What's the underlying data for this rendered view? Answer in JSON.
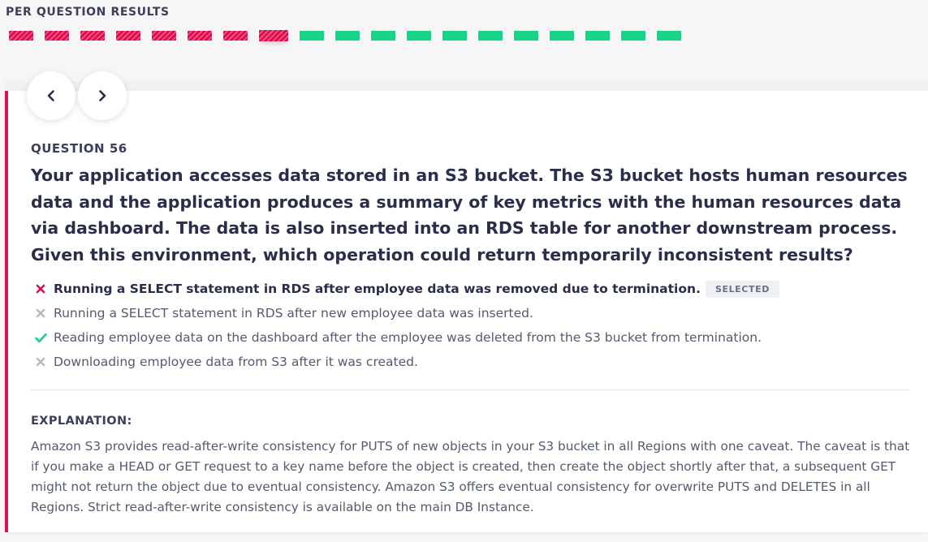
{
  "header": {
    "title": "PER QUESTION RESULTS"
  },
  "progress": {
    "segments": [
      "wrong",
      "wrong",
      "wrong",
      "wrong",
      "wrong",
      "wrong",
      "wrong",
      "wrong",
      "correct",
      "correct",
      "correct",
      "correct",
      "correct",
      "correct",
      "correct",
      "correct",
      "correct",
      "correct",
      "correct"
    ],
    "current_index": 7
  },
  "nav": {
    "prev_icon": "chevron-left-icon",
    "next_icon": "chevron-right-icon"
  },
  "question": {
    "label": "QUESTION 56",
    "text": "Your application accesses data stored in an S3 bucket. The S3 bucket hosts human resources data and the application produces a summary of key metrics with the human resources data via dashboard. The data is also inserted into an RDS table for another downstream process. Given this environment, which operation could return temporarily inconsistent results?"
  },
  "answers": [
    {
      "text": "Running a SELECT statement in RDS after employee data was removed due to termination.",
      "status": "wrong",
      "selected": true,
      "badge": "SELECTED"
    },
    {
      "text": "Running a SELECT statement in RDS after new employee data was inserted.",
      "status": "neutral",
      "selected": false
    },
    {
      "text": "Reading employee data on the dashboard after the employee was deleted from the S3 bucket from termination.",
      "status": "correct",
      "selected": false
    },
    {
      "text": "Downloading employee data from S3 after it was created.",
      "status": "neutral",
      "selected": false
    }
  ],
  "explanation": {
    "label": "EXPLANATION:",
    "text": "Amazon S3 provides read-after-write consistency for PUTS of new objects in your S3 bucket in all Regions with one caveat. The caveat is that if you make a HEAD or GET request to a key name before the object is created, then create the object shortly after that, a subsequent GET might not return the object due to eventual consistency. Amazon S3 offers eventual consistency for overwrite PUTS and DELETES in all Regions. Strict read-after-write consistency is available on the main DB Instance."
  },
  "colors": {
    "wrong": "#d8124f",
    "correct": "#18d486",
    "neutral": "#b7bac4",
    "text": "#3a3f5c"
  }
}
